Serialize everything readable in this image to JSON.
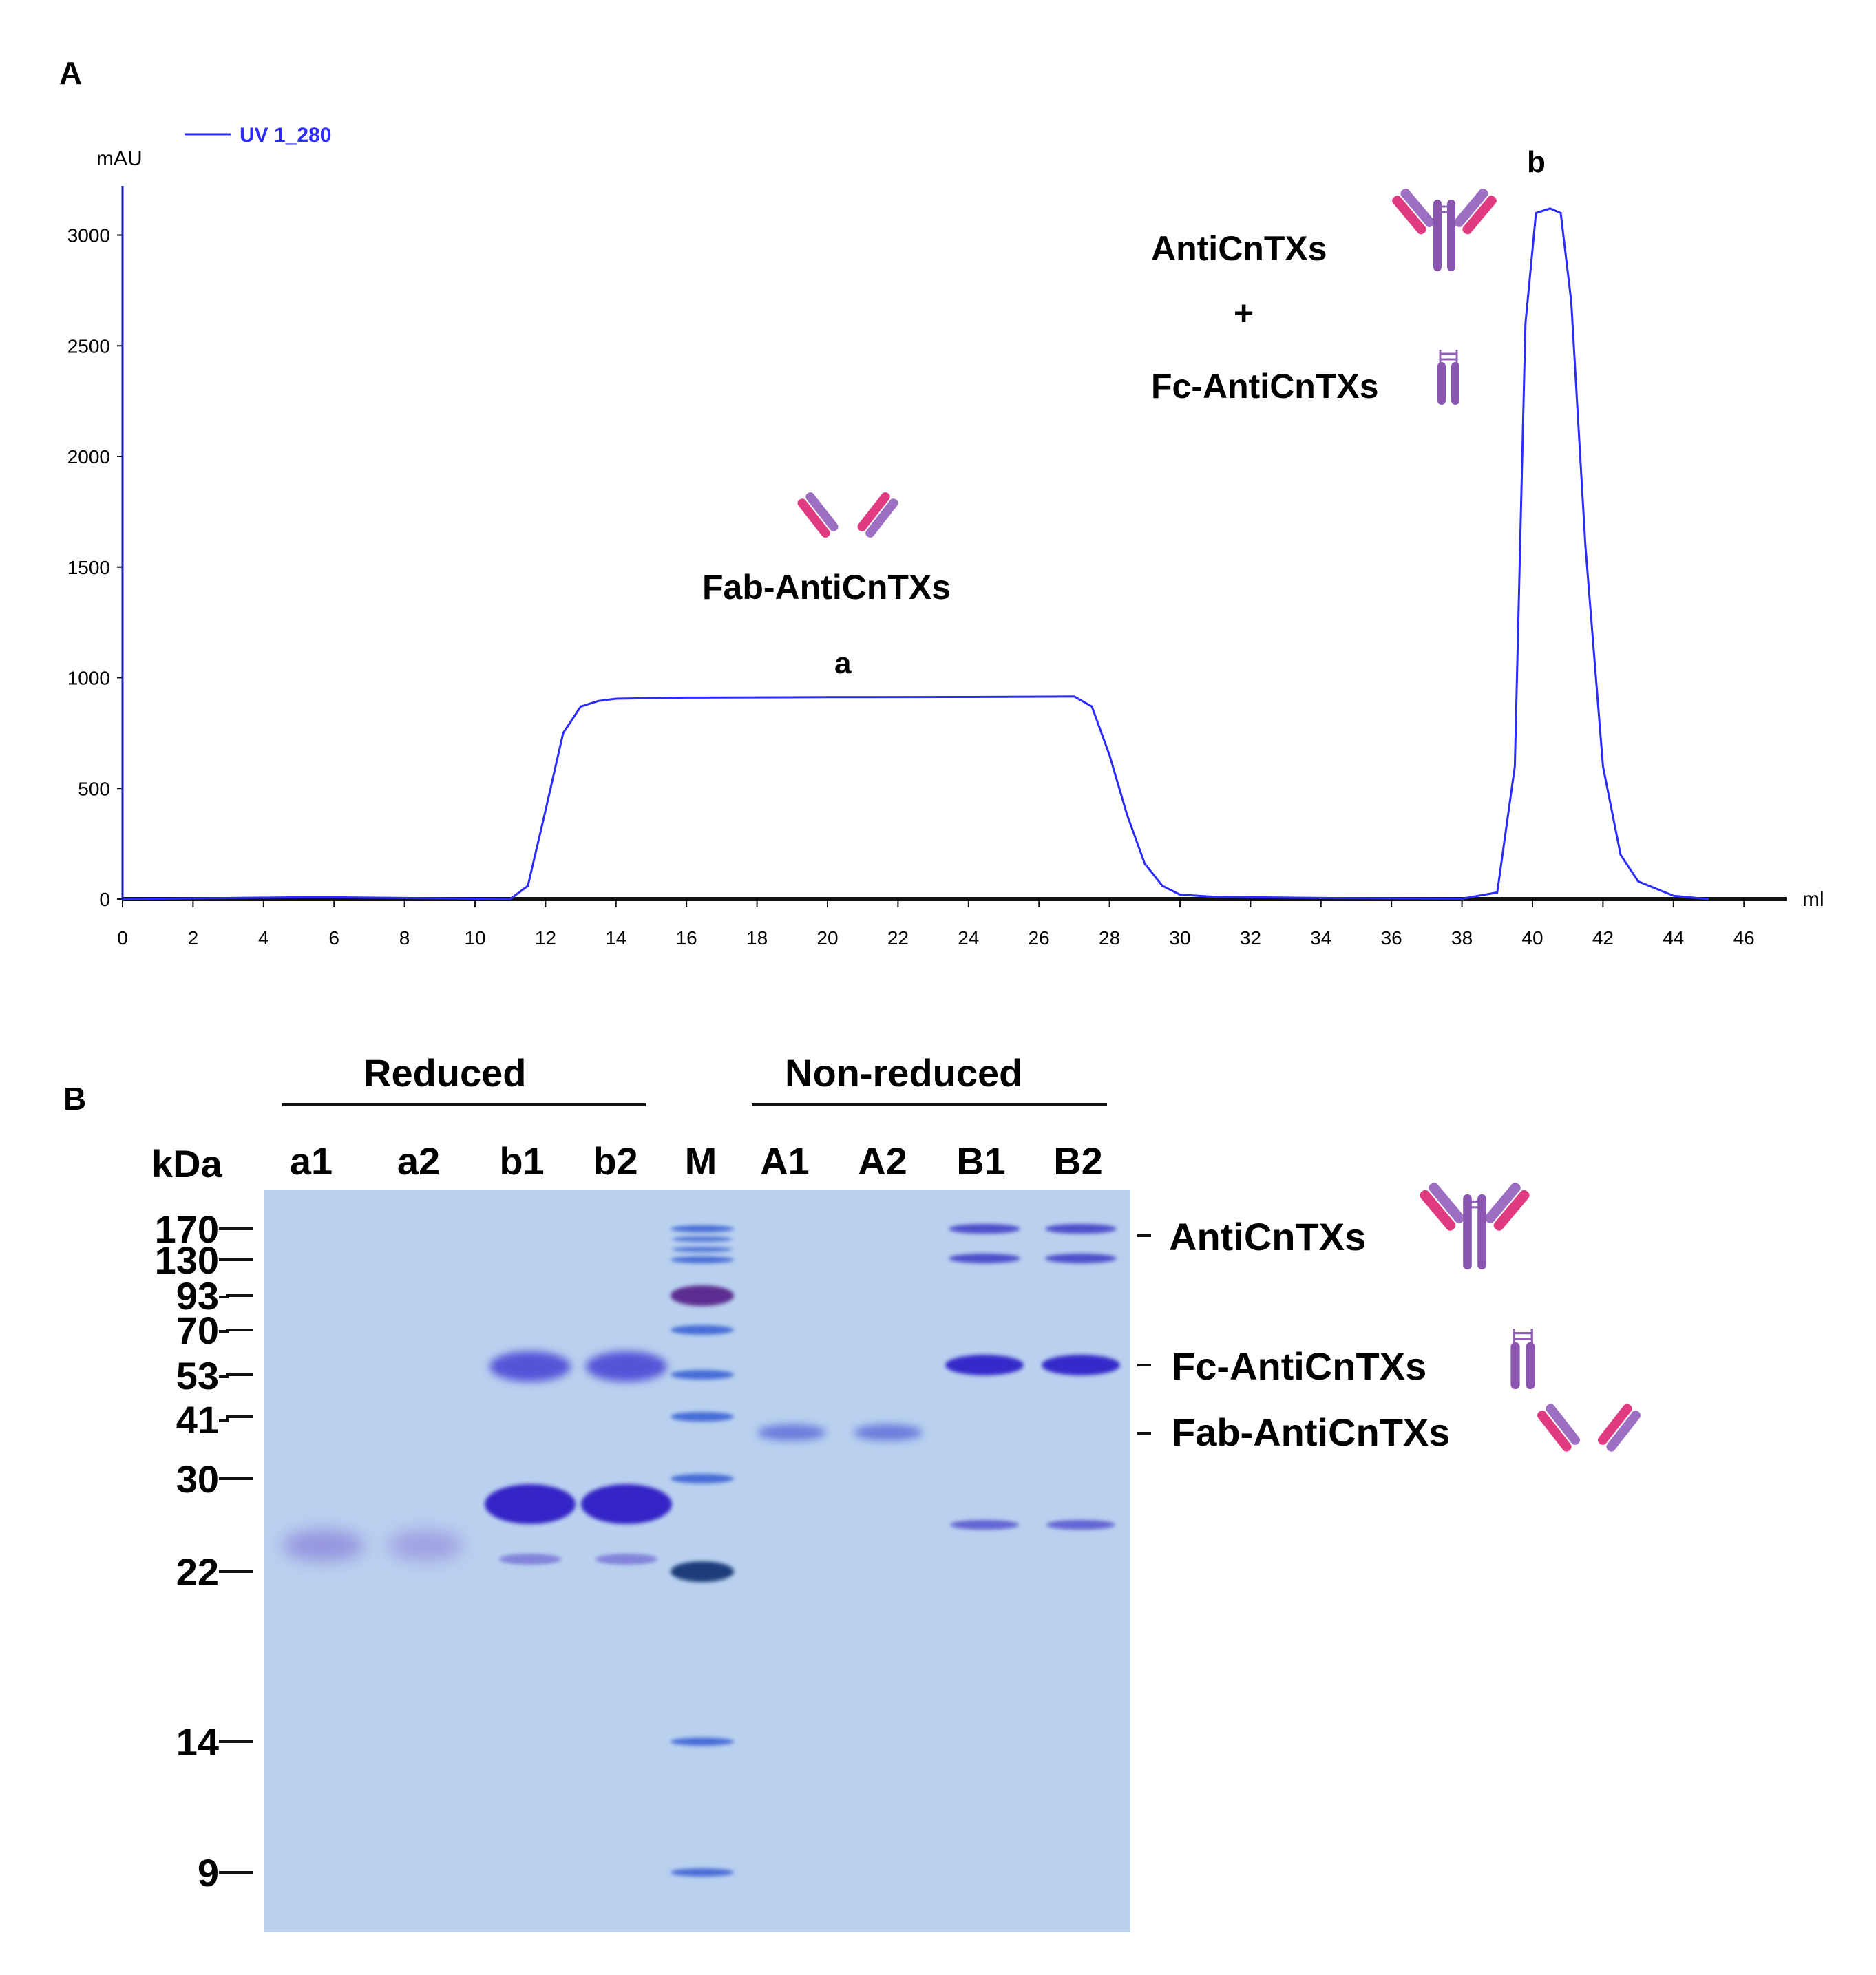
{
  "chart_data": [
    {
      "type": "line",
      "panel": "A",
      "title": "",
      "ylabel": "mAU",
      "xlabel": "ml",
      "xlim": [
        0,
        48
      ],
      "ylim": [
        0,
        3200
      ],
      "xticks": [
        0,
        2,
        4,
        6,
        8,
        10,
        12,
        14,
        16,
        18,
        20,
        22,
        24,
        26,
        28,
        30,
        32,
        34,
        36,
        38,
        40,
        42,
        44,
        46
      ],
      "yticks": [
        0,
        500,
        1000,
        1500,
        2000,
        2500,
        3000
      ],
      "legend": "UV 1_280",
      "series": [
        {
          "name": "UV 1_280",
          "color": "#2b2bff",
          "x": [
            0,
            5,
            6,
            11,
            11.5,
            12,
            12.5,
            13,
            13.5,
            14,
            16,
            20,
            24,
            27,
            27.5,
            28,
            28.5,
            29,
            29.5,
            30,
            31,
            34,
            38,
            39,
            39.5,
            39.8,
            40.1,
            40.5,
            40.8,
            41.1,
            41.5,
            42,
            42.5,
            43,
            44,
            45
          ],
          "y": [
            0,
            8,
            8,
            0,
            60,
            400,
            750,
            870,
            895,
            905,
            910,
            912,
            913,
            915,
            870,
            650,
            380,
            160,
            60,
            20,
            10,
            5,
            2,
            30,
            600,
            2600,
            3100,
            3120,
            3100,
            2700,
            1600,
            600,
            200,
            80,
            15,
            0
          ]
        }
      ],
      "annotations": [
        {
          "label": "a",
          "text": "Fab-AntiCnTXs"
        },
        {
          "label": "b",
          "text_1": "AntiCnTXs",
          "plus": "+",
          "text_2": "Fc-AntiCnTXs"
        }
      ]
    },
    {
      "type": "gel",
      "panel": "B",
      "groups": [
        "Reduced",
        "Non-reduced"
      ],
      "ylabel": "kDa",
      "lanes": [
        "a1",
        "a2",
        "b1",
        "b2",
        "M",
        "A1",
        "A2",
        "B1",
        "B2"
      ],
      "marker_kda": [
        170,
        130,
        93,
        70,
        53,
        41,
        30,
        22,
        14,
        9
      ],
      "right_labels": [
        "AntiCnTXs",
        "Fc-AntiCnTXs",
        "Fab-AntiCnTXs"
      ]
    }
  ],
  "colors": {
    "line": "#2b2bff",
    "gel_bg": "#b9d1ef",
    "band": "#3a38c4",
    "marker_dark": "#521a86",
    "ab_pink": "#d9357d",
    "ab_purple": "#8f62b3"
  },
  "icons": [
    "antibody-full-icon",
    "fc-fragment-icon",
    "fab-fragment-icon"
  ]
}
